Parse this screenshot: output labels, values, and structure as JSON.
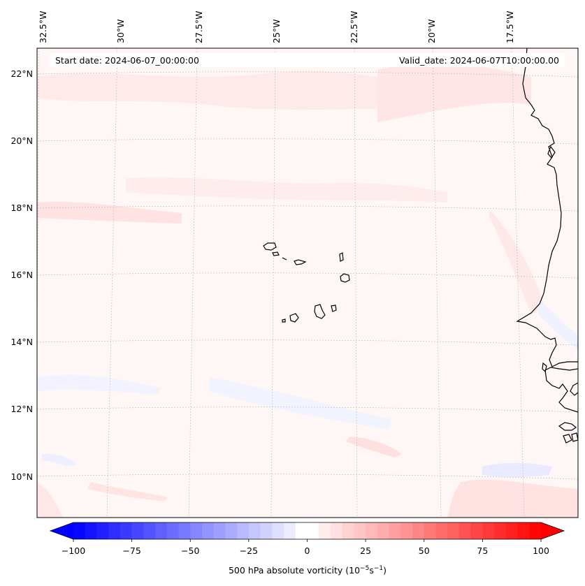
{
  "annotations": {
    "start": "Start date: 2024-06-07_00:00:00",
    "valid": "Valid_date: 2024-06-07T10:00:00.00"
  },
  "lon_labels": [
    "32.5°W",
    "30°W",
    "27.5°W",
    "25°W",
    "22.5°W",
    "20°W",
    "17.5°W"
  ],
  "lat_labels": [
    "22°N",
    "20°N",
    "18°N",
    "16°N",
    "14°N",
    "12°N",
    "10°N"
  ],
  "colorbar": {
    "label_prefix": "500 hPa absolute vorticity (10",
    "label_exp1": "−5",
    "label_mid": "s",
    "label_exp2": "−1",
    "label_suffix": ")",
    "ticks": [
      "−100",
      "−75",
      "−50",
      "−25",
      "0",
      "25",
      "50",
      "75",
      "100"
    ],
    "min": -100,
    "max": 100,
    "step": 5,
    "neg_color": "#0000ff",
    "pos_color": "#ff0000",
    "mid_color": "#ffffff"
  },
  "colors": {
    "coast": "#000000",
    "grid": "#bbbbbb",
    "field_background": "#fff6f6",
    "positive_anomaly": "#ffe4e4",
    "negative_anomaly": "#eef0ff"
  }
}
